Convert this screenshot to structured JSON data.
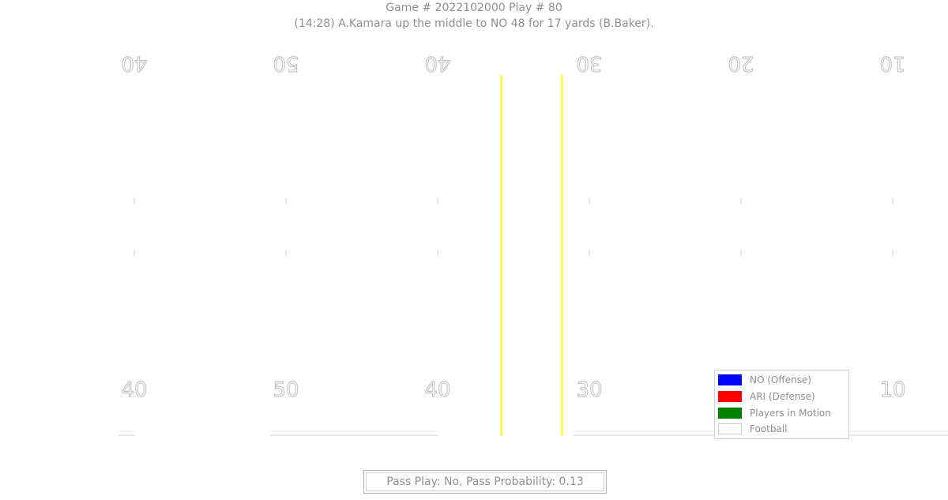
{
  "chart_data": {
    "type": "football_field",
    "title": "Game # 2022102000 Play # 80",
    "subtitle": "(14:28) A.Kamara up the middle to NO 48 for 17 yards (B.Baker).",
    "yard_lines": [
      {
        "yard": 40,
        "label": "40"
      },
      {
        "yard": 50,
        "label": "50"
      },
      {
        "yard": 60,
        "label": "40"
      },
      {
        "yard": 70,
        "label": "30"
      },
      {
        "yard": 80,
        "label": "20"
      },
      {
        "yard": 90,
        "label": "10"
      }
    ],
    "line_of_scrimmage": 64.2,
    "first_down_line": 68.2,
    "marker_color": "#ffff00",
    "xlim": [
      35,
      95
    ],
    "legend": {
      "placement": "bottom-right",
      "entries": [
        {
          "label": "NO (Offense)",
          "color": "#0000ff"
        },
        {
          "label": "ARI (Defense)",
          "color": "#ff0000"
        },
        {
          "label": "Players in Motion",
          "color": "#008000"
        },
        {
          "label": "Football",
          "color": "#ffffff"
        }
      ]
    },
    "footer": "Pass Play: No, Pass Probability: 0.13"
  }
}
